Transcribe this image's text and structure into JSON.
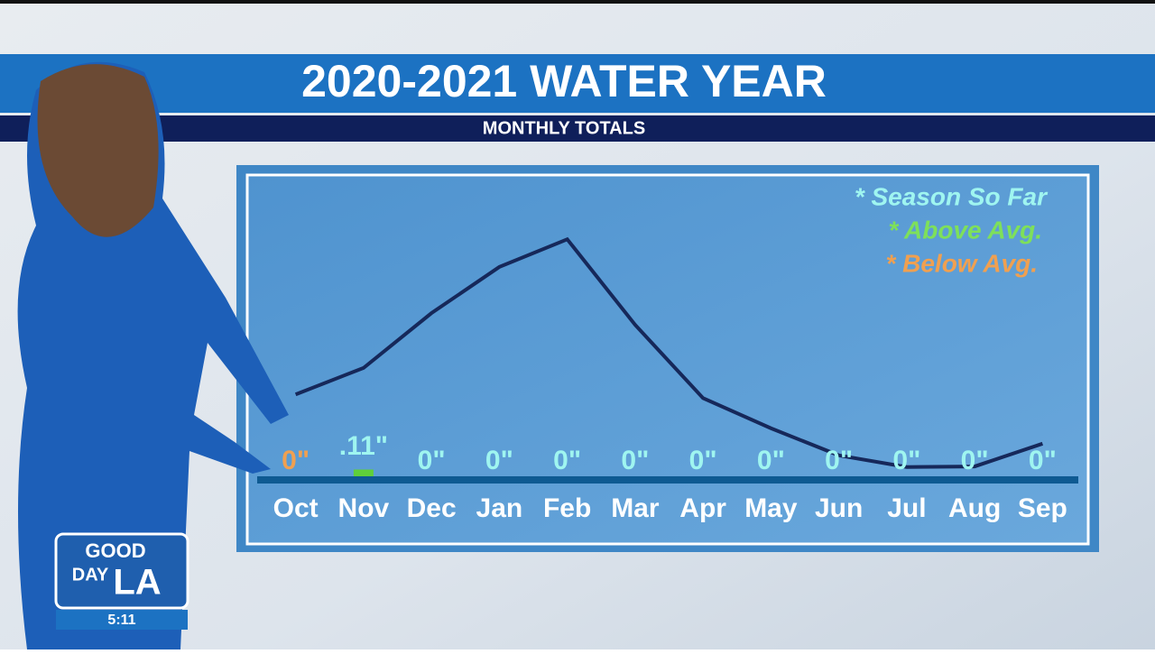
{
  "chart_data": {
    "type": "bar",
    "title": "2020-2021 WATER YEAR",
    "subtitle": "MONTHLY TOTALS",
    "categories": [
      "Oct",
      "Nov",
      "Dec",
      "Jan",
      "Feb",
      "Mar",
      "Apr",
      "May",
      "Jun",
      "Jul",
      "Aug",
      "Sep"
    ],
    "values": [
      0,
      0.11,
      0,
      0,
      0,
      0,
      0,
      0,
      0,
      0,
      0,
      0
    ],
    "value_labels": [
      "0\"",
      ".11\"",
      "0\"",
      "0\"",
      "0\"",
      "0\"",
      "0\"",
      "0\"",
      "0\"",
      "0\"",
      "0\"",
      "0\""
    ],
    "label_colors": [
      "#f0a050",
      "#9ff5f0",
      "#9ff5f0",
      "#9ff5f0",
      "#9ff5f0",
      "#9ff5f0",
      "#9ff5f0",
      "#9ff5f0",
      "#9ff5f0",
      "#9ff5f0",
      "#9ff5f0",
      "#9ff5f0"
    ],
    "color": "#5fcf3a",
    "average": {
      "color": "#16285a",
      "values": [
        1.33,
        1.76,
        2.65,
        3.4,
        3.85,
        2.46,
        1.27,
        0.78,
        0.34,
        0.15,
        0.16,
        0.53
      ]
    },
    "ylim": [
      0,
      4
    ],
    "legend": [
      {
        "text": "* Season So Far",
        "color": "#9ff5f0"
      },
      {
        "text": "* Above Avg.",
        "color": "#7ee05a"
      },
      {
        "text": "* Below Avg.",
        "color": "#f0a050"
      }
    ]
  },
  "logo": {
    "line1": "GOOD",
    "line2": "DAY",
    "line3": "LA",
    "time": "5:11"
  }
}
